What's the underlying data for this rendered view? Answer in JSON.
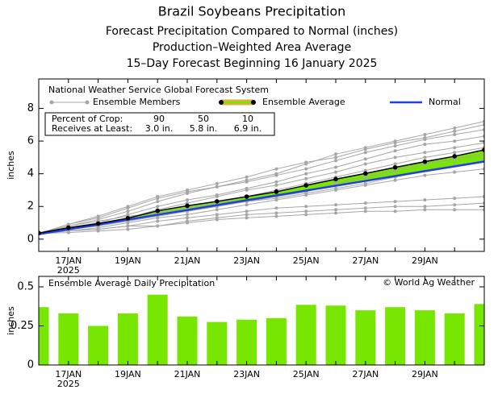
{
  "chart_data": [
    {
      "type": "line",
      "title": "Brazil Soybeans Precipitation",
      "subtitles": [
        "Forecast Precipitation Compared to Normal (inches)",
        "Production–Weighted Area Average",
        "15–Day Forecast Beginning 16 January 2025"
      ],
      "source": "National Weather Service Global Forecast System",
      "y_label": "inches",
      "categories": [
        null,
        "17JAN",
        null,
        "19JAN",
        null,
        "21JAN",
        null,
        "23JAN",
        null,
        "25JAN",
        null,
        "27JAN",
        null,
        "29JAN",
        null,
        null
      ],
      "year_label": "2025",
      "ylim": [
        -0.75,
        9.8
      ],
      "yticks": [
        0,
        2,
        4,
        6,
        8
      ],
      "series": [
        {
          "name": "Ensemble Members",
          "color": "#a6a6a6",
          "values": [
            [
              0.35,
              0.8,
              1.2,
              1.7,
              2.3,
              2.8,
              3.2,
              3.6,
              4.0,
              4.6,
              5.2,
              5.6,
              6.0,
              6.4,
              6.8,
              7.2
            ],
            [
              0.35,
              0.9,
              1.3,
              1.9,
              2.5,
              2.9,
              3.2,
              3.5,
              3.9,
              4.3,
              4.8,
              5.3,
              5.7,
              6.1,
              6.4,
              6.7
            ],
            [
              0.35,
              0.7,
              1.0,
              1.5,
              2.0,
              2.4,
              2.7,
              3.1,
              3.5,
              4.0,
              4.4,
              4.9,
              5.4,
              5.8,
              6.0,
              6.3
            ],
            [
              0.35,
              0.6,
              0.9,
              1.3,
              1.8,
              2.2,
              2.6,
              3.0,
              3.3,
              3.7,
              4.1,
              4.6,
              5.0,
              5.3,
              5.6,
              5.9
            ],
            [
              0.35,
              0.8,
              1.1,
              1.4,
              1.6,
              1.9,
              2.2,
              2.6,
              3.0,
              3.4,
              3.8,
              4.2,
              4.6,
              5.0,
              5.3,
              5.6
            ],
            [
              0.35,
              0.7,
              0.9,
              1.2,
              1.5,
              1.8,
              2.0,
              2.3,
              2.6,
              2.9,
              3.4,
              3.8,
              4.2,
              4.6,
              4.9,
              5.2
            ],
            [
              0.35,
              0.6,
              0.8,
              1.1,
              1.4,
              1.7,
              2.0,
              2.3,
              2.5,
              2.8,
              3.1,
              3.4,
              3.8,
              4.2,
              4.5,
              4.8
            ],
            [
              0.35,
              0.5,
              0.7,
              1.0,
              1.3,
              1.5,
              1.8,
              2.1,
              2.4,
              2.7,
              3.0,
              3.3,
              3.6,
              3.9,
              4.1,
              4.3
            ],
            [
              0.35,
              0.5,
              0.6,
              0.8,
              1.1,
              1.3,
              1.5,
              1.7,
              1.9,
              2.0,
              2.1,
              2.2,
              2.3,
              2.4,
              2.5,
              2.6
            ],
            [
              0.35,
              0.5,
              0.6,
              0.8,
              0.8,
              1.1,
              1.3,
              1.5,
              1.6,
              1.7,
              1.8,
              1.9,
              2.0,
              2.0,
              2.1,
              2.2
            ],
            [
              0.35,
              0.4,
              0.5,
              0.6,
              0.8,
              1.0,
              1.2,
              1.3,
              1.4,
              1.5,
              1.6,
              1.7,
              1.7,
              1.8,
              1.8,
              1.8
            ],
            [
              0.35,
              0.9,
              1.4,
              2.0,
              2.6,
              3.0,
              3.4,
              3.8,
              4.3,
              4.7,
              5.0,
              5.5,
              5.9,
              6.2,
              6.6,
              7.0
            ]
          ]
        },
        {
          "name": "Ensemble Average",
          "color": "#000000",
          "fill": "#77e600",
          "outline": "#f5a04a",
          "values": [
            0.37,
            0.7,
            0.95,
            1.28,
            1.73,
            2.04,
            2.31,
            2.6,
            2.9,
            3.29,
            3.67,
            4.02,
            4.39,
            4.74,
            5.07,
            5.46
          ]
        },
        {
          "name": "Normal",
          "color": "#2040e0",
          "values": [
            0.3,
            0.6,
            0.89,
            1.19,
            1.49,
            1.78,
            2.08,
            2.38,
            2.67,
            2.97,
            3.27,
            3.56,
            3.86,
            4.16,
            4.45,
            4.75
          ]
        }
      ],
      "crop_table": {
        "rows": [
          [
            "Percent of Crop:",
            "90",
            "50",
            "10"
          ],
          [
            "Receives at Least:",
            "3.0 in.",
            "5.8 in.",
            "6.9 in."
          ]
        ]
      }
    },
    {
      "type": "bar",
      "title": "Ensemble Average Daily Precipitation",
      "credit": "© World Ag Weather",
      "y_label": "inches",
      "categories": [
        null,
        "17JAN",
        null,
        "19JAN",
        null,
        "21JAN",
        null,
        "23JAN",
        null,
        "25JAN",
        null,
        "27JAN",
        null,
        "29JAN",
        null,
        null
      ],
      "year_label": "2025",
      "color": "#77e600",
      "values": [
        0.37,
        0.33,
        0.25,
        0.33,
        0.45,
        0.31,
        0.275,
        0.29,
        0.3,
        0.385,
        0.38,
        0.35,
        0.37,
        0.35,
        0.33,
        0.39
      ],
      "ylim": [
        0,
        0.567
      ],
      "yticks": [
        0,
        0.25,
        0.5
      ]
    }
  ]
}
